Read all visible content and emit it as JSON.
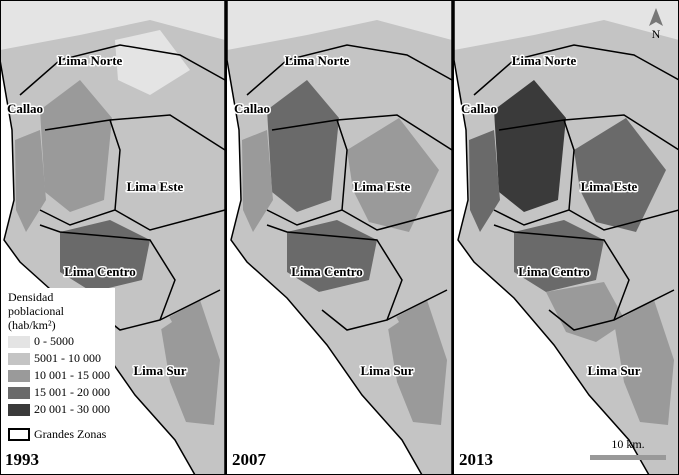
{
  "panels": [
    {
      "year": "1993"
    },
    {
      "year": "2007"
    },
    {
      "year": "2013"
    }
  ],
  "zones": [
    "Lima Norte",
    "Callao",
    "Lima Este",
    "Lima Centro",
    "Lima Sur"
  ],
  "legend": {
    "title_lines": [
      "Densidad",
      "poblacional",
      "(hab/km²)"
    ],
    "items": [
      {
        "label": "0 - 5000",
        "color": "#e4e4e4"
      },
      {
        "label": "5001 - 10 000",
        "color": "#c4c4c4"
      },
      {
        "label": "10 001 - 15 000",
        "color": "#9a9a9a"
      },
      {
        "label": "15 001 - 20 000",
        "color": "#6a6a6a"
      },
      {
        "label": "20 001 - 30 000",
        "color": "#3a3a3a"
      }
    ],
    "boundary_label": "Grandes Zonas"
  },
  "scale_label": "10 km.",
  "north": "N"
}
